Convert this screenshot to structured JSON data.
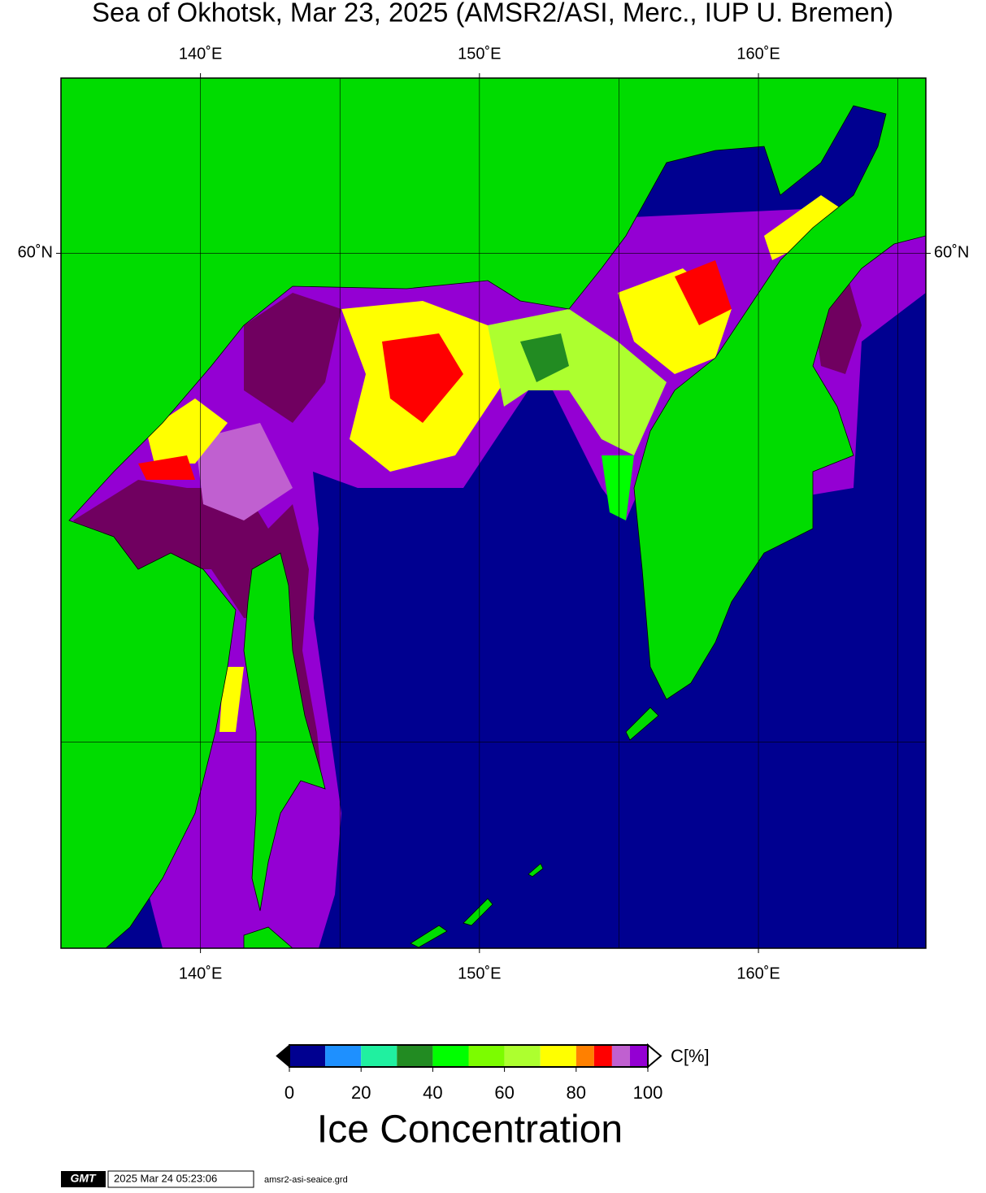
{
  "title": "Sea of Okhotsk, Mar 23, 2025 (AMSR2/ASI, Merc., IUP U. Bremen)",
  "map": {
    "projection": "mercator",
    "xlim": [
      135,
      166
    ],
    "ylim": [
      45,
      63
    ],
    "xticks": [
      {
        "value": 140,
        "label": "140˚E"
      },
      {
        "value": 150,
        "label": "150˚E"
      },
      {
        "value": 160,
        "label": "160˚E"
      }
    ],
    "yticks": [
      {
        "value": 60,
        "label": "60˚N"
      }
    ],
    "grid_lon": [
      145,
      155,
      165
    ],
    "grid_lat": [
      50
    ]
  },
  "colorbar": {
    "bins": [
      0,
      10,
      20,
      30,
      40,
      50,
      60,
      70,
      80,
      85,
      90,
      95,
      100
    ],
    "colors": [
      "#000090",
      "#1e90ff",
      "#20f0a0",
      "#228b22",
      "#00ff00",
      "#7cfc00",
      "#adff2f",
      "#ffff00",
      "#ff8000",
      "#ff0000",
      "#c060d0",
      "#9400d3"
    ],
    "xlim": [
      0,
      100
    ],
    "xticks": [
      0,
      20,
      40,
      60,
      80,
      100
    ],
    "unit": "C[%]",
    "label": "Ice Concentration"
  },
  "footer": {
    "logo": "GMT",
    "timestamp": "2025 Mar 24 05:23:06",
    "file": "amsr2-asi-seaice.grd"
  }
}
